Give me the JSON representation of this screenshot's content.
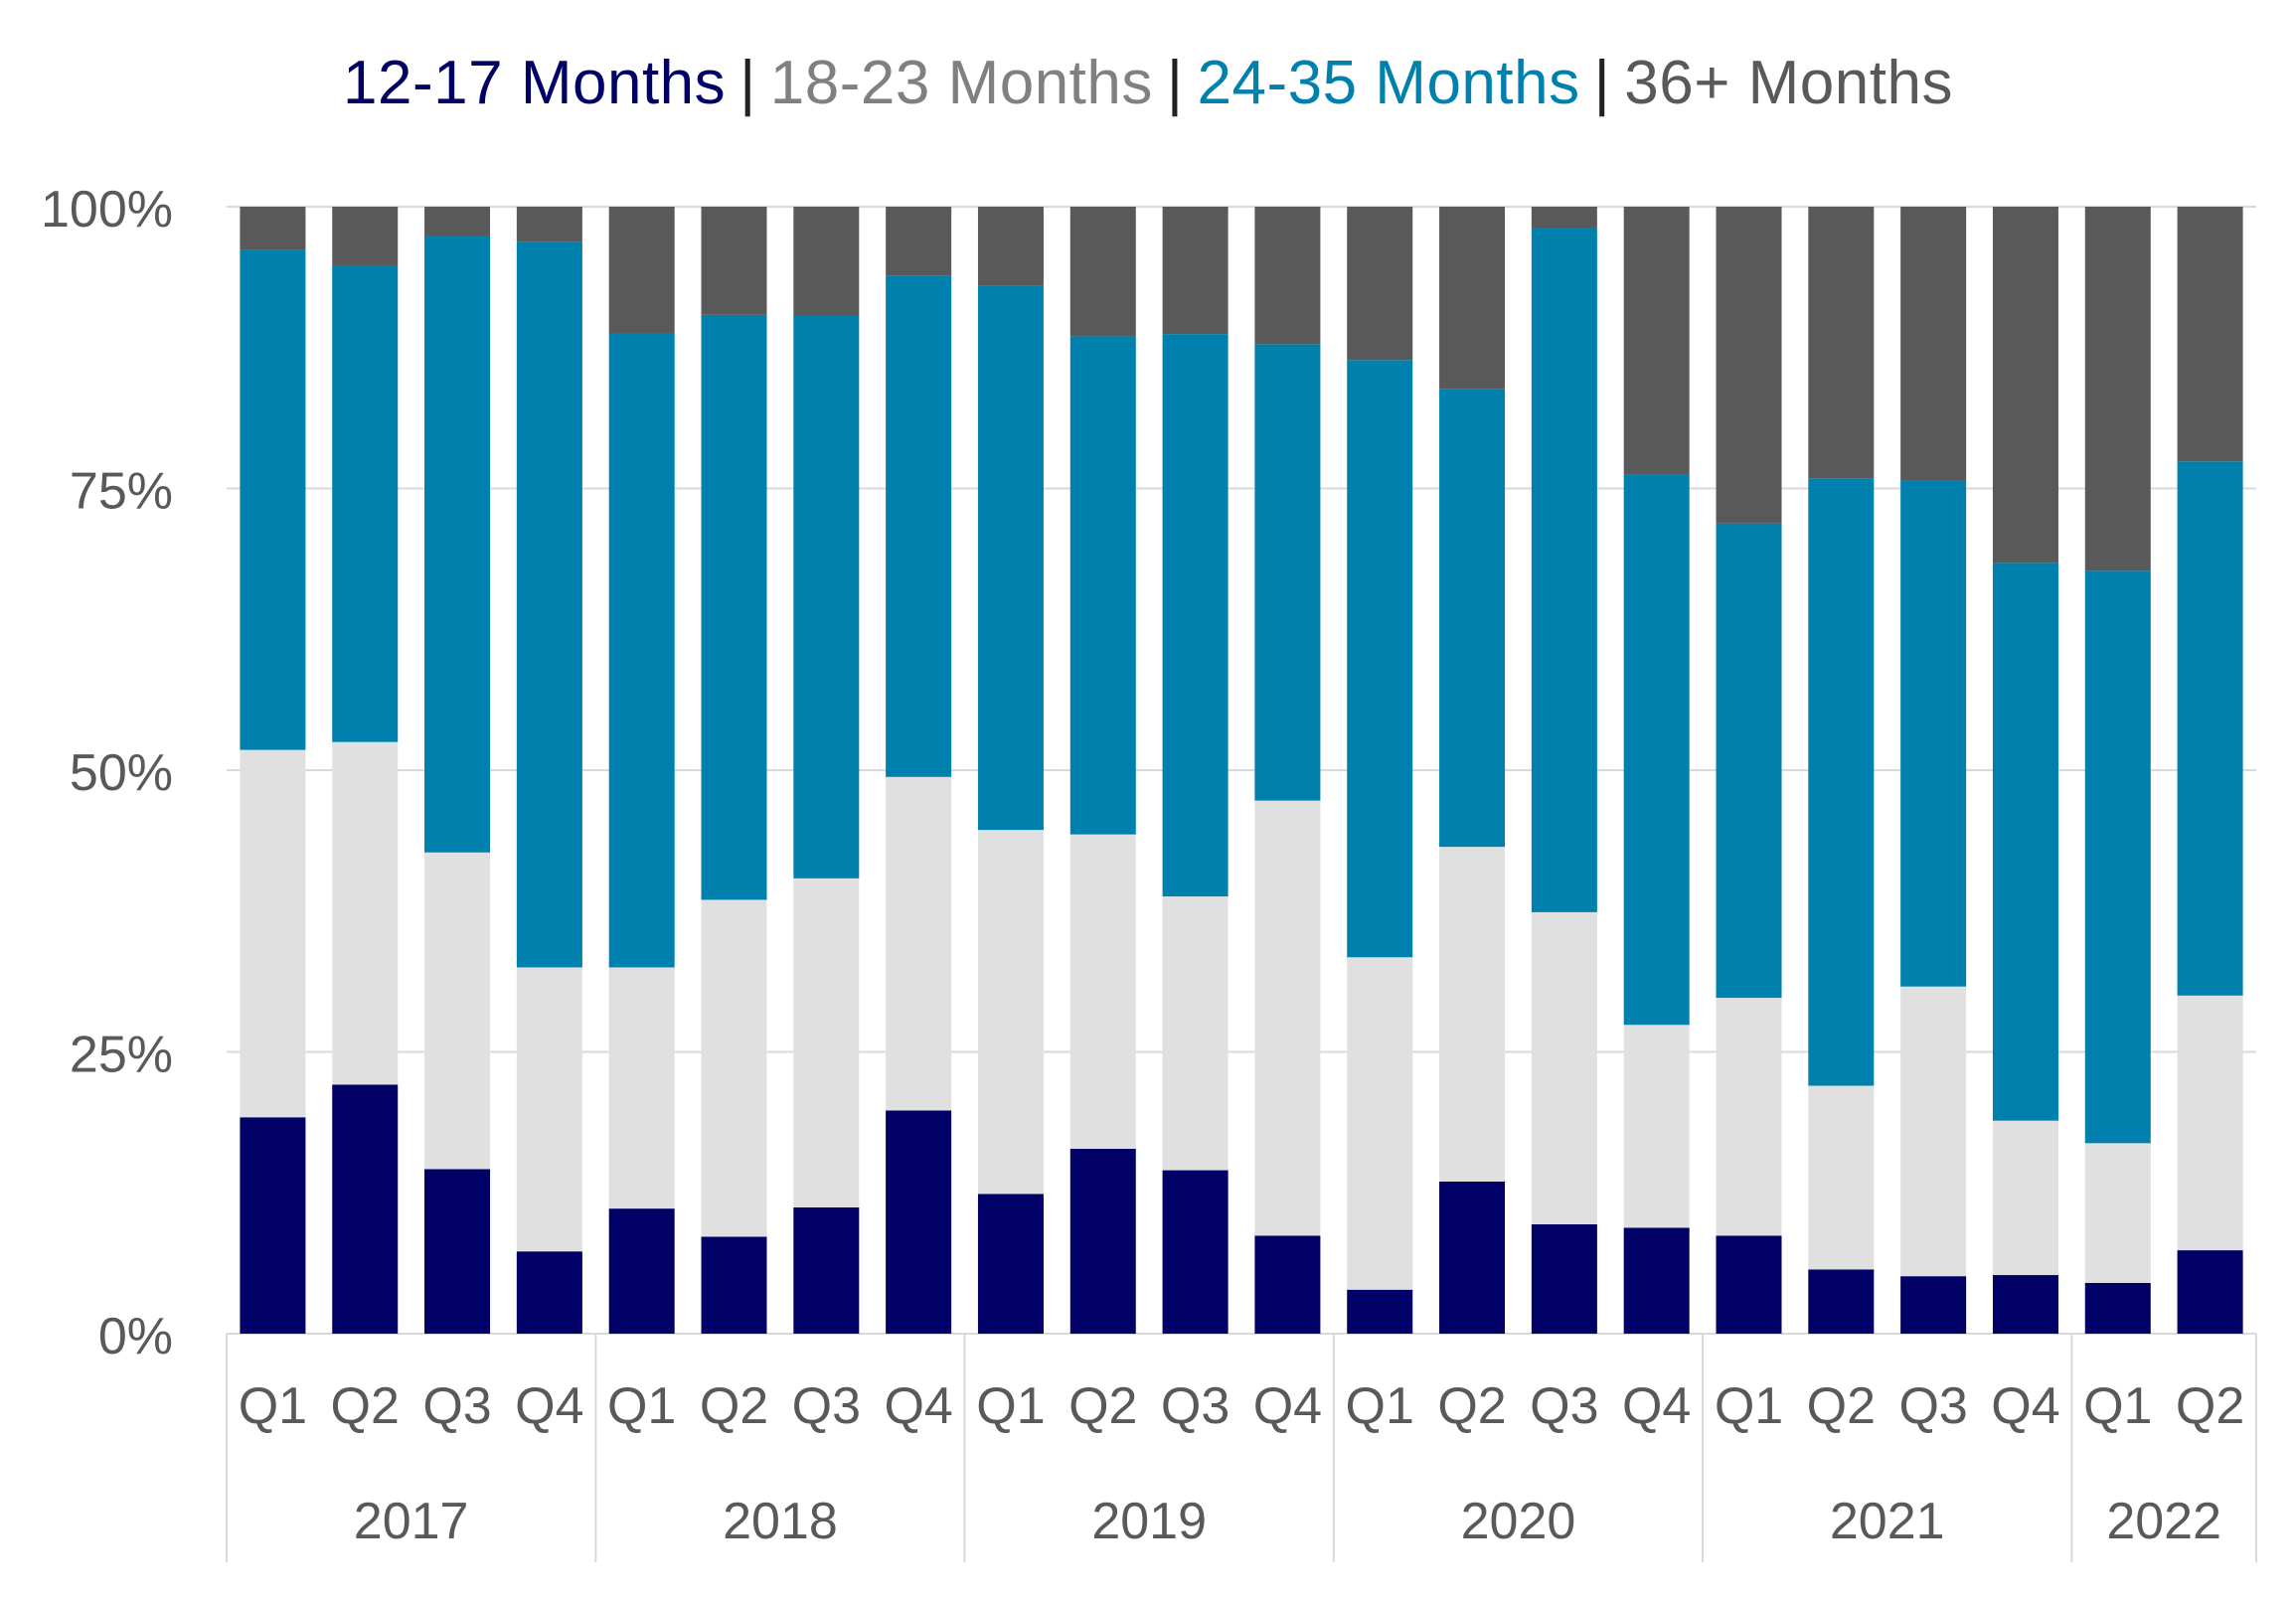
{
  "legend": {
    "items": [
      {
        "label": "12-17 Months",
        "color": "#000066"
      },
      {
        "label": "18-23 Months",
        "color": "#808080"
      },
      {
        "label": "24-35 Months",
        "color": "#0080AD"
      },
      {
        "label": "36+ Months",
        "color": "#595959"
      }
    ],
    "separator": "|"
  },
  "chart_data": {
    "type": "bar",
    "stacked": true,
    "percent": true,
    "ylim": [
      0,
      100
    ],
    "yticks": [
      "0%",
      "25%",
      "50%",
      "75%",
      "100%"
    ],
    "ytick_values": [
      0,
      25,
      50,
      75,
      100
    ],
    "grid": true,
    "legend_position": "top",
    "categories": [
      "Q1",
      "Q2",
      "Q3",
      "Q4",
      "Q1",
      "Q2",
      "Q3",
      "Q4",
      "Q1",
      "Q2",
      "Q3",
      "Q4",
      "Q1",
      "Q2",
      "Q3",
      "Q4",
      "Q1",
      "Q2",
      "Q3",
      "Q4",
      "Q1",
      "Q2"
    ],
    "groups": [
      {
        "label": "2017",
        "count": 4
      },
      {
        "label": "2018",
        "count": 4
      },
      {
        "label": "2019",
        "count": 4
      },
      {
        "label": "2020",
        "count": 4
      },
      {
        "label": "2021",
        "count": 4
      },
      {
        "label": "2022",
        "count": 2
      }
    ],
    "series": [
      {
        "name": "12-17 Months",
        "color": "#000066",
        "values": [
          19.2,
          22.1,
          14.6,
          7.3,
          11.1,
          8.6,
          11.2,
          19.8,
          12.4,
          16.4,
          14.5,
          8.7,
          3.9,
          13.5,
          9.7,
          9.4,
          8.7,
          5.7,
          5.1,
          5.2,
          4.5,
          7.4
        ]
      },
      {
        "name": "18-23 Months",
        "color": "#E0E0E0",
        "values": [
          32.6,
          30.4,
          28.1,
          25.2,
          21.4,
          29.9,
          29.2,
          29.6,
          32.3,
          27.9,
          24.3,
          38.6,
          29.5,
          29.7,
          27.7,
          18.0,
          21.1,
          16.3,
          25.7,
          13.7,
          12.4,
          22.6
        ]
      },
      {
        "name": "24-35 Months",
        "color": "#0080AD",
        "values": [
          44.4,
          42.3,
          54.7,
          64.4,
          56.3,
          51.9,
          49.9,
          44.5,
          48.3,
          44.2,
          49.9,
          40.5,
          53.0,
          40.6,
          60.7,
          48.8,
          42.1,
          53.9,
          44.9,
          49.5,
          50.8,
          47.4
        ]
      },
      {
        "name": "36+ Months",
        "color": "#595959",
        "values": [
          3.8,
          5.2,
          2.6,
          3.1,
          11.2,
          9.6,
          9.7,
          6.1,
          7.0,
          11.5,
          11.3,
          12.2,
          13.6,
          16.2,
          1.9,
          23.8,
          28.1,
          24.1,
          24.3,
          31.6,
          32.3,
          22.6
        ]
      }
    ]
  }
}
